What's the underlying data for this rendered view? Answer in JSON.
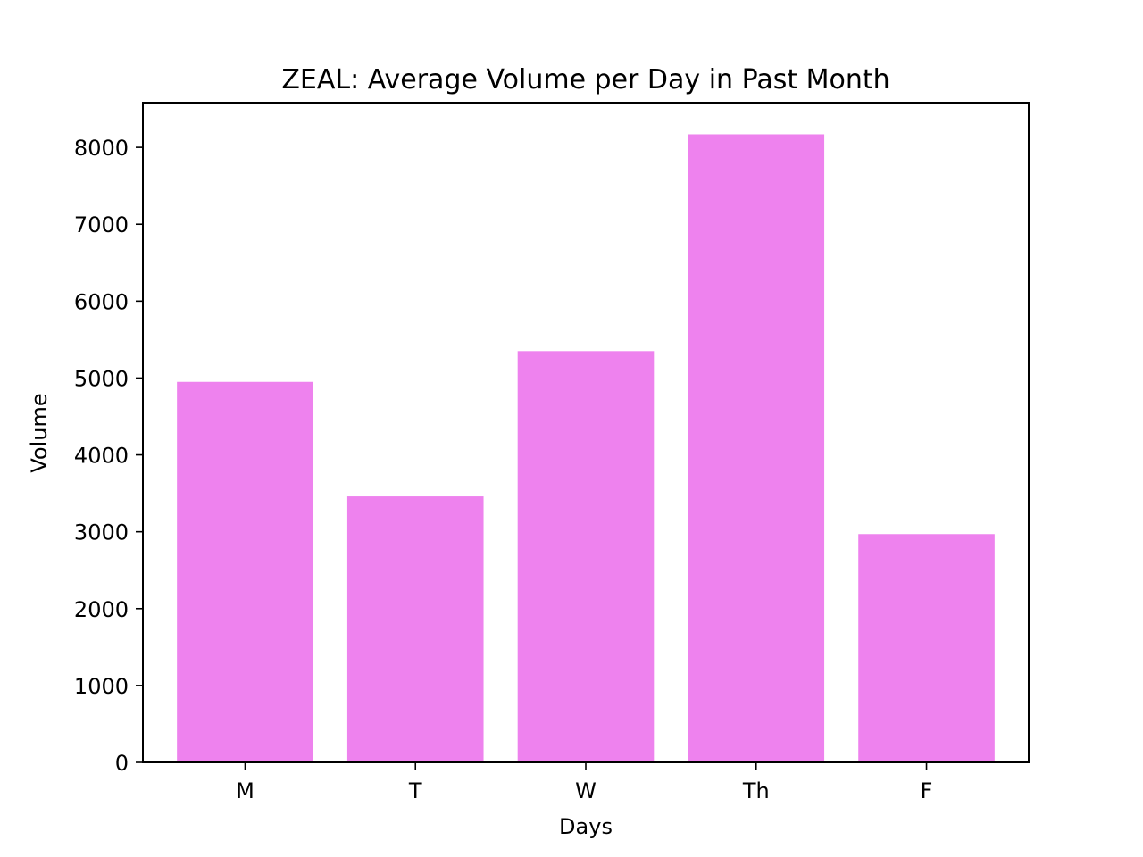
{
  "chart_data": {
    "type": "bar",
    "title": "ZEAL: Average Volume per Day in Past Month",
    "xlabel": "Days",
    "ylabel": "Volume",
    "categories": [
      "M",
      "T",
      "W",
      "Th",
      "F"
    ],
    "values": [
      4950,
      3460,
      5350,
      8170,
      2970
    ],
    "ylim": [
      0,
      8582
    ],
    "yticks": [
      0,
      1000,
      2000,
      3000,
      4000,
      5000,
      6000,
      7000,
      8000
    ],
    "ytick_labels": [
      "0",
      "1000",
      "2000",
      "3000",
      "4000",
      "5000",
      "6000",
      "7000",
      "8000"
    ],
    "bar_color": "#ee82ee",
    "grid": false
  }
}
